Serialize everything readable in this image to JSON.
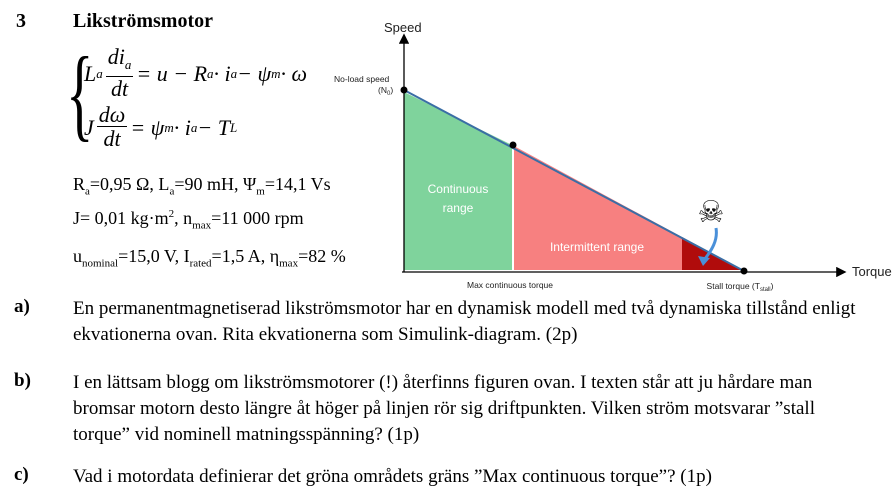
{
  "question": {
    "number": "3",
    "title": "Likströmsmotor"
  },
  "equations": {
    "eq1": {
      "lhs_coef": "L",
      "lhs_coef_sub": "a",
      "num": "di",
      "num_sub": "a",
      "den": "dt",
      "rhs_part1": "= u − R",
      "rhs_sub1": "a",
      "rhs_part2": " · i",
      "rhs_sub2": "a",
      "rhs_part3": " − ψ",
      "rhs_sub3": "m",
      "rhs_part4": " · ω"
    },
    "eq2": {
      "lhs_coef": "J",
      "num": "dω",
      "den": "dt",
      "rhs_part1": "= ψ",
      "rhs_sub1": "m",
      "rhs_part2": " · i",
      "rhs_sub2": "a",
      "rhs_part3": " − T",
      "rhs_sub3": "L"
    }
  },
  "parameters": {
    "line1": {
      "ra": "R",
      "ra_sub": "a",
      "ra_val": "=0,95 Ω, L",
      "la_sub": "a",
      "la_val": "=90 mH,  Ψ",
      "psi_sub": "m",
      "psi_val": "=14,1 Vs"
    },
    "line2": {
      "j": "J= 0,01 kg·m",
      "j_sup": "2",
      "j_rest": ", n",
      "n_sub": "max",
      "n_val": "=11 000 rpm"
    },
    "line3": {
      "u": "u",
      "u_sub": "nominal",
      "u_val": "=15,0 V, I",
      "i_sub": "rated",
      "i_val": "=1,5 A, η",
      "eta_sub": "max",
      "eta_val": "=82 %"
    }
  },
  "figure": {
    "y_axis_label": "Speed",
    "x_axis_label": "Torque",
    "no_load_label": "No-load speed",
    "no_load_sub": "(N",
    "no_load_sub2": "0",
    "no_load_sub3": ")",
    "continuous_label_1": "Continuous",
    "continuous_label_2": "range",
    "intermittent_label": "Intermittent range",
    "max_continuous_label": "Max continuous torque",
    "stall_label": "Stall torque (T",
    "stall_sub": "stall",
    "stall_close": ")",
    "skull_icon": "☠",
    "colors": {
      "continuous": "#7fd39c",
      "intermittent": "#f78080",
      "stall_zone": "#b00c0c",
      "line": "#3a6ea5",
      "arrow": "#4a90d9"
    }
  },
  "questions": [
    {
      "label": "a)",
      "text": "En permanentmagnetiserad likströmsmotor har en dynamisk modell med två dynamiska tillstånd enligt ekvationerna ovan. Rita ekvationerna som Simulink-diagram. (2p)"
    },
    {
      "label": "b)",
      "text": "I en lättsam blogg om likströmsmotorer (!) återfinns figuren ovan. I texten står att ju hårdare man bromsar motorn desto längre åt höger på linjen rör sig driftpunkten. Vilken ström motsvarar ”stall torque” vid nominell matningsspänning? (1p)"
    },
    {
      "label": "c)",
      "text": "Vad i motordata definierar det gröna områdets gräns ”Max continuous torque”? (1p)"
    }
  ]
}
